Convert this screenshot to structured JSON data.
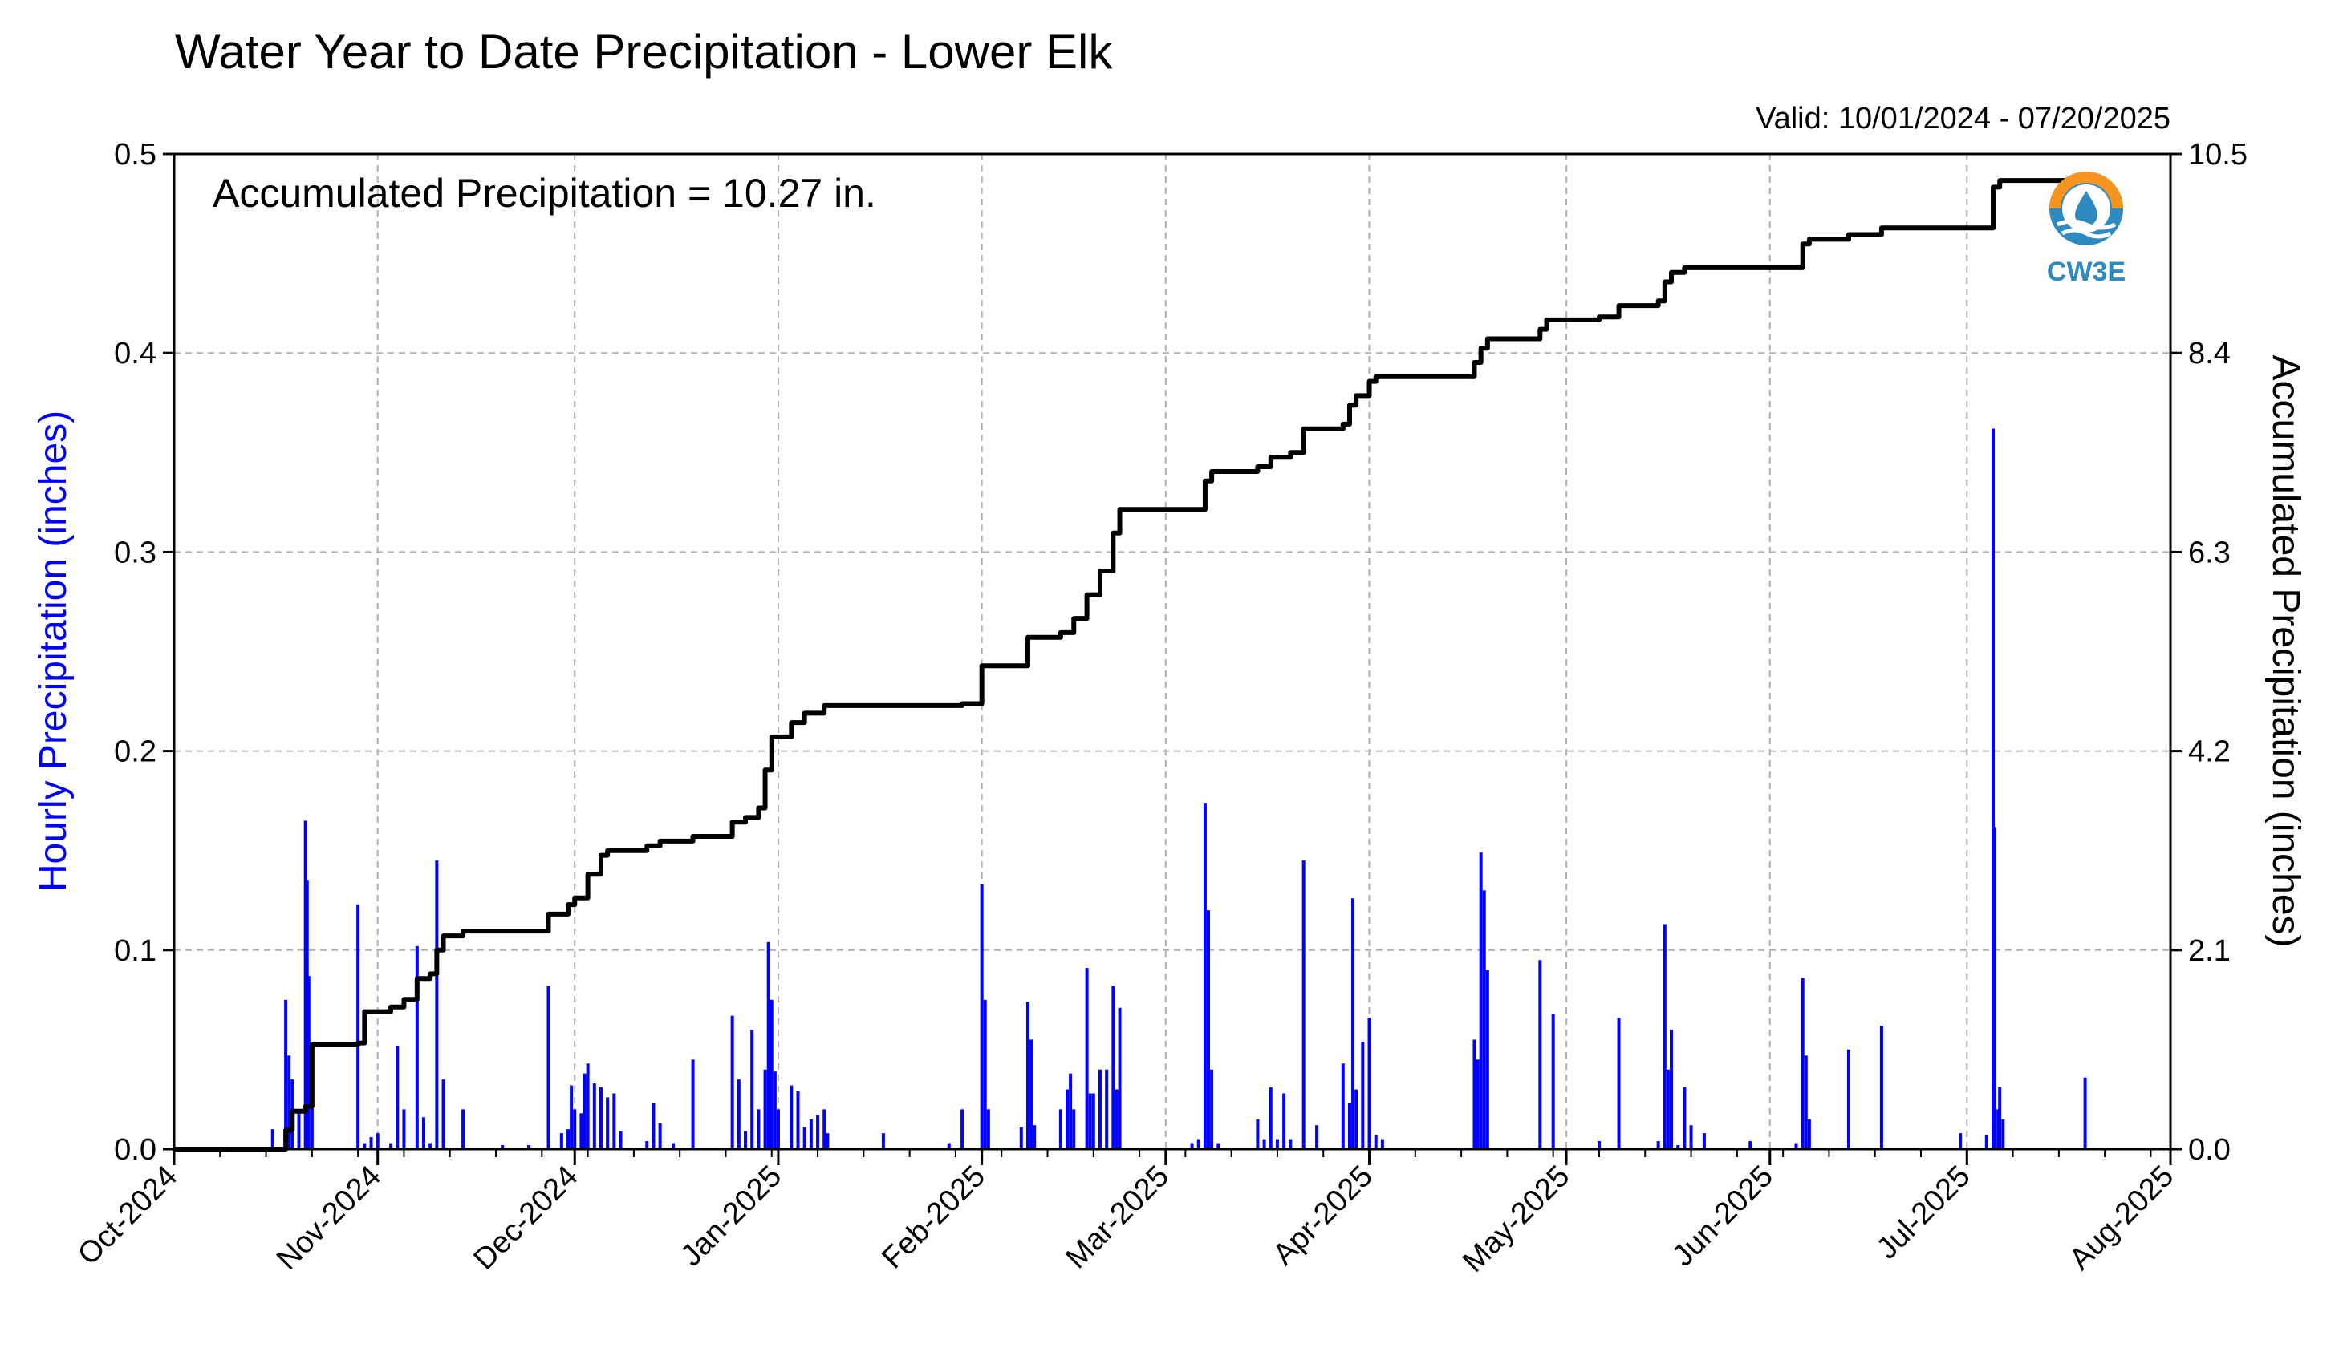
{
  "chart_data": {
    "type": "bar",
    "title": "Water Year to Date Precipitation - Lower Elk",
    "subtitle": "Valid: 10/01/2024 - 07/20/2025",
    "annotation": "Accumulated Precipitation = 10.27 in.",
    "ylabel_left": "Hourly Precipitation (inches)",
    "ylabel_right": "Accumulated Precipitation (inches)",
    "xlim": [
      "2024-10-01",
      "2025-08-01"
    ],
    "ylim_left": [
      0,
      0.5
    ],
    "ylim_right": [
      0,
      10.5
    ],
    "yticks_left": [
      "0.0",
      "0.1",
      "0.2",
      "0.3",
      "0.4",
      "0.5"
    ],
    "yticks_right": [
      "0.0",
      "2.1",
      "4.2",
      "6.3",
      "8.4",
      "10.5"
    ],
    "xticks": [
      {
        "date": "2024-10-01",
        "label": "Oct-2024"
      },
      {
        "date": "2024-11-01",
        "label": "Nov-2024"
      },
      {
        "date": "2024-12-01",
        "label": "Dec-2024"
      },
      {
        "date": "2025-01-01",
        "label": "Jan-2025"
      },
      {
        "date": "2025-02-01",
        "label": "Feb-2025"
      },
      {
        "date": "2025-03-01",
        "label": "Mar-2025"
      },
      {
        "date": "2025-04-01",
        "label": "Apr-2025"
      },
      {
        "date": "2025-05-01",
        "label": "May-2025"
      },
      {
        "date": "2025-06-01",
        "label": "Jun-2025"
      },
      {
        "date": "2025-07-01",
        "label": "Jul-2025"
      },
      {
        "date": "2025-08-01",
        "label": "Aug-2025"
      }
    ],
    "grid": true,
    "logo_text": "CW3E",
    "colors": {
      "hourly": "#0000ff",
      "accumulated": "#000000",
      "grid": "#b0b0b0",
      "logo_orange": "#f7941d",
      "logo_blue": "#2e8bc0"
    },
    "series": [
      {
        "name": "Hourly Precipitation (inches)",
        "axis": "left",
        "style": "bars",
        "points": [
          [
            "2024-10-16",
            0.01
          ],
          [
            "2024-10-18",
            0.075
          ],
          [
            "2024-10-18T12",
            0.047
          ],
          [
            "2024-10-19",
            0.035
          ],
          [
            "2024-10-20",
            0.02
          ],
          [
            "2024-10-21",
            0.165
          ],
          [
            "2024-10-21T06",
            0.135
          ],
          [
            "2024-10-21T12",
            0.087
          ],
          [
            "2024-10-22",
            0.03
          ],
          [
            "2024-10-29",
            0.123
          ],
          [
            "2024-10-30",
            0.003
          ],
          [
            "2024-10-31",
            0.006
          ],
          [
            "2024-11-01",
            0.008
          ],
          [
            "2024-11-03",
            0.003
          ],
          [
            "2024-11-04",
            0.052
          ],
          [
            "2024-11-05",
            0.02
          ],
          [
            "2024-11-07",
            0.102
          ],
          [
            "2024-11-08",
            0.016
          ],
          [
            "2024-11-09",
            0.003
          ],
          [
            "2024-11-10",
            0.145
          ],
          [
            "2024-11-11",
            0.035
          ],
          [
            "2024-11-14",
            0.02
          ],
          [
            "2024-11-20",
            0.002
          ],
          [
            "2024-11-24",
            0.002
          ],
          [
            "2024-11-27",
            0.082
          ],
          [
            "2024-11-29",
            0.008
          ],
          [
            "2024-11-30",
            0.01
          ],
          [
            "2024-11-30T12",
            0.032
          ],
          [
            "2024-12-01",
            0.02
          ],
          [
            "2024-12-02",
            0.018
          ],
          [
            "2024-12-02T12",
            0.038
          ],
          [
            "2024-12-03",
            0.043
          ],
          [
            "2024-12-04",
            0.033
          ],
          [
            "2024-12-05",
            0.031
          ],
          [
            "2024-12-06",
            0.026
          ],
          [
            "2024-12-07",
            0.028
          ],
          [
            "2024-12-08",
            0.009
          ],
          [
            "2024-12-12",
            0.004
          ],
          [
            "2024-12-13",
            0.023
          ],
          [
            "2024-12-14",
            0.013
          ],
          [
            "2024-12-16",
            0.003
          ],
          [
            "2024-12-19",
            0.045
          ],
          [
            "2024-12-25",
            0.067
          ],
          [
            "2024-12-26",
            0.035
          ],
          [
            "2024-12-27",
            0.009
          ],
          [
            "2024-12-28",
            0.06
          ],
          [
            "2024-12-29",
            0.02
          ],
          [
            "2024-12-30",
            0.04
          ],
          [
            "2024-12-30T12",
            0.104
          ],
          [
            "2024-12-31",
            0.075
          ],
          [
            "2024-12-31T12",
            0.039
          ],
          [
            "2025-01-01",
            0.02
          ],
          [
            "2025-01-03",
            0.032
          ],
          [
            "2025-01-04",
            0.029
          ],
          [
            "2025-01-05",
            0.011
          ],
          [
            "2025-01-06",
            0.015
          ],
          [
            "2025-01-07",
            0.017
          ],
          [
            "2025-01-08",
            0.02
          ],
          [
            "2025-01-08T12",
            0.008
          ],
          [
            "2025-01-17",
            0.008
          ],
          [
            "2025-01-27",
            0.003
          ],
          [
            "2025-01-29",
            0.02
          ],
          [
            "2025-02-01",
            0.133
          ],
          [
            "2025-02-01T12",
            0.075
          ],
          [
            "2025-02-02",
            0.02
          ],
          [
            "2025-02-07",
            0.011
          ],
          [
            "2025-02-08",
            0.074
          ],
          [
            "2025-02-08T12",
            0.055
          ],
          [
            "2025-02-09",
            0.012
          ],
          [
            "2025-02-13",
            0.02
          ],
          [
            "2025-02-14",
            0.03
          ],
          [
            "2025-02-14T12",
            0.038
          ],
          [
            "2025-02-15",
            0.02
          ],
          [
            "2025-02-17",
            0.091
          ],
          [
            "2025-02-17T12",
            0.028
          ],
          [
            "2025-02-18",
            0.028
          ],
          [
            "2025-02-19",
            0.04
          ],
          [
            "2025-02-20",
            0.04
          ],
          [
            "2025-02-21",
            0.082
          ],
          [
            "2025-02-21T12",
            0.03
          ],
          [
            "2025-02-22",
            0.071
          ],
          [
            "2025-03-05",
            0.003
          ],
          [
            "2025-03-06",
            0.005
          ],
          [
            "2025-03-07",
            0.174
          ],
          [
            "2025-03-07T12",
            0.12
          ],
          [
            "2025-03-08",
            0.04
          ],
          [
            "2025-03-09",
            0.003
          ],
          [
            "2025-03-15",
            0.015
          ],
          [
            "2025-03-16",
            0.005
          ],
          [
            "2025-03-17",
            0.031
          ],
          [
            "2025-03-18",
            0.005
          ],
          [
            "2025-03-19",
            0.028
          ],
          [
            "2025-03-20",
            0.005
          ],
          [
            "2025-03-22",
            0.145
          ],
          [
            "2025-03-24",
            0.012
          ],
          [
            "2025-03-28",
            0.043
          ],
          [
            "2025-03-29",
            0.023
          ],
          [
            "2025-03-29T12",
            0.126
          ],
          [
            "2025-03-30",
            0.03
          ],
          [
            "2025-03-31",
            0.054
          ],
          [
            "2025-04-01",
            0.066
          ],
          [
            "2025-04-02",
            0.007
          ],
          [
            "2025-04-03",
            0.005
          ],
          [
            "2025-04-17",
            0.055
          ],
          [
            "2025-04-17T12",
            0.045
          ],
          [
            "2025-04-18",
            0.149
          ],
          [
            "2025-04-18T12",
            0.13
          ],
          [
            "2025-04-19",
            0.09
          ],
          [
            "2025-04-27",
            0.095
          ],
          [
            "2025-04-29",
            0.068
          ],
          [
            "2025-05-06",
            0.004
          ],
          [
            "2025-05-09",
            0.066
          ],
          [
            "2025-05-15",
            0.004
          ],
          [
            "2025-05-16",
            0.113
          ],
          [
            "2025-05-16T12",
            0.04
          ],
          [
            "2025-05-17",
            0.06
          ],
          [
            "2025-05-18",
            0.002
          ],
          [
            "2025-05-19",
            0.031
          ],
          [
            "2025-05-20",
            0.012
          ],
          [
            "2025-05-22",
            0.008
          ],
          [
            "2025-05-29",
            0.004
          ],
          [
            "2025-06-05",
            0.003
          ],
          [
            "2025-06-06",
            0.086
          ],
          [
            "2025-06-06T12",
            0.047
          ],
          [
            "2025-06-07",
            0.015
          ],
          [
            "2025-06-13",
            0.05
          ],
          [
            "2025-06-18",
            0.062
          ],
          [
            "2025-06-30",
            0.008
          ],
          [
            "2025-07-04",
            0.007
          ],
          [
            "2025-07-05",
            0.362
          ],
          [
            "2025-07-05T06",
            0.162
          ],
          [
            "2025-07-05T18",
            0.02
          ],
          [
            "2025-07-06",
            0.031
          ],
          [
            "2025-07-06T12",
            0.015
          ],
          [
            "2025-07-19",
            0.036
          ]
        ]
      },
      {
        "name": "Accumulated Precipitation (inches)",
        "axis": "right",
        "style": "step-line",
        "points": [
          [
            "2024-10-01",
            0.0
          ],
          [
            "2024-10-17",
            0.0
          ],
          [
            "2024-10-18",
            0.2
          ],
          [
            "2024-10-19",
            0.4
          ],
          [
            "2024-10-21",
            0.45
          ],
          [
            "2024-10-22",
            1.1
          ],
          [
            "2024-10-29",
            1.12
          ],
          [
            "2024-10-30",
            1.45
          ],
          [
            "2024-11-03",
            1.5
          ],
          [
            "2024-11-05",
            1.58
          ],
          [
            "2024-11-07",
            1.8
          ],
          [
            "2024-11-09",
            1.85
          ],
          [
            "2024-11-10",
            2.1
          ],
          [
            "2024-11-11",
            2.25
          ],
          [
            "2024-11-14",
            2.3
          ],
          [
            "2024-11-26",
            2.3
          ],
          [
            "2024-11-27",
            2.48
          ],
          [
            "2024-11-30",
            2.58
          ],
          [
            "2024-12-01",
            2.65
          ],
          [
            "2024-12-03",
            2.9
          ],
          [
            "2024-12-05",
            3.1
          ],
          [
            "2024-12-06",
            3.15
          ],
          [
            "2024-12-12",
            3.2
          ],
          [
            "2024-12-14",
            3.25
          ],
          [
            "2024-12-19",
            3.3
          ],
          [
            "2024-12-25",
            3.45
          ],
          [
            "2024-12-27",
            3.5
          ],
          [
            "2024-12-29",
            3.6
          ],
          [
            "2024-12-30",
            4.0
          ],
          [
            "2024-12-31",
            4.35
          ],
          [
            "2025-01-03",
            4.5
          ],
          [
            "2025-01-05",
            4.6
          ],
          [
            "2025-01-08",
            4.68
          ],
          [
            "2025-01-29",
            4.7
          ],
          [
            "2025-02-01",
            5.1
          ],
          [
            "2025-02-08",
            5.4
          ],
          [
            "2025-02-13",
            5.45
          ],
          [
            "2025-02-15",
            5.6
          ],
          [
            "2025-02-17",
            5.85
          ],
          [
            "2025-02-19",
            6.1
          ],
          [
            "2025-02-21",
            6.5
          ],
          [
            "2025-02-22",
            6.75
          ],
          [
            "2025-03-06",
            6.75
          ],
          [
            "2025-03-07",
            7.05
          ],
          [
            "2025-03-08",
            7.15
          ],
          [
            "2025-03-15",
            7.2
          ],
          [
            "2025-03-17",
            7.3
          ],
          [
            "2025-03-20",
            7.35
          ],
          [
            "2025-03-22",
            7.6
          ],
          [
            "2025-03-28",
            7.65
          ],
          [
            "2025-03-29",
            7.85
          ],
          [
            "2025-03-30",
            7.95
          ],
          [
            "2025-04-01",
            8.1
          ],
          [
            "2025-04-02",
            8.15
          ],
          [
            "2025-04-16",
            8.15
          ],
          [
            "2025-04-17",
            8.3
          ],
          [
            "2025-04-18",
            8.45
          ],
          [
            "2025-04-19",
            8.55
          ],
          [
            "2025-04-27",
            8.65
          ],
          [
            "2025-04-28",
            8.75
          ],
          [
            "2025-05-06",
            8.78
          ],
          [
            "2025-05-09",
            8.9
          ],
          [
            "2025-05-15",
            8.95
          ],
          [
            "2025-05-16",
            9.15
          ],
          [
            "2025-05-17",
            9.25
          ],
          [
            "2025-05-19",
            9.3
          ],
          [
            "2025-05-31",
            9.3
          ],
          [
            "2025-06-05",
            9.3
          ],
          [
            "2025-06-06",
            9.55
          ],
          [
            "2025-06-07",
            9.6
          ],
          [
            "2025-06-13",
            9.65
          ],
          [
            "2025-06-18",
            9.72
          ],
          [
            "2025-07-04",
            9.72
          ],
          [
            "2025-07-05",
            10.15
          ],
          [
            "2025-07-06",
            10.22
          ],
          [
            "2025-07-19",
            10.27
          ],
          [
            "2025-07-20",
            10.27
          ]
        ]
      }
    ]
  }
}
